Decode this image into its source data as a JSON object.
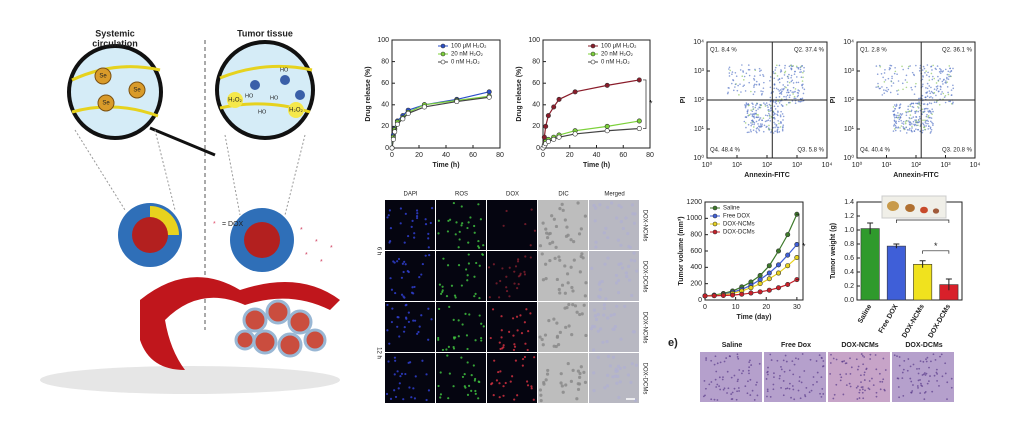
{
  "schematic": {
    "left_title": [
      "Systemic",
      "circulation"
    ],
    "right_title": "Tumor tissue",
    "legend": "= DOX",
    "se_labels": [
      "Se",
      "Se",
      "Se"
    ],
    "h2o2_labels": [
      "H₂O₂",
      "H₂O₂"
    ],
    "ho_labels": [
      "HO",
      "HO",
      "HO",
      "HO"
    ]
  },
  "chart_data": [
    {
      "type": "line",
      "x_label": "Time (h)",
      "y_label": "Drug release (%)",
      "x": [
        0,
        1,
        2,
        4,
        8,
        12,
        24,
        48,
        72
      ],
      "xlim": [
        0,
        80
      ],
      "ylim": [
        0,
        100
      ],
      "xticks": [
        0,
        20,
        40,
        60,
        80
      ],
      "yticks": [
        0,
        20,
        40,
        60,
        80,
        100
      ],
      "legend": "upper right",
      "series": [
        {
          "name": "100 μM H₂O₂",
          "color": "#2b4fc9",
          "values": [
            0,
            12,
            18,
            25,
            30,
            35,
            40,
            45,
            52
          ]
        },
        {
          "name": "20 nM H₂O₂",
          "color": "#7cd13a",
          "values": [
            0,
            10,
            17,
            24,
            28,
            33,
            40,
            44,
            48
          ]
        },
        {
          "name": "0 nM H₂O₂",
          "color": "#ffffff",
          "values": [
            0,
            8,
            15,
            22,
            27,
            32,
            38,
            43,
            47
          ]
        }
      ]
    },
    {
      "type": "line",
      "x_label": "Time (h)",
      "y_label": "Drug release (%)",
      "x": [
        0,
        1,
        2,
        4,
        8,
        12,
        24,
        48,
        72
      ],
      "xlim": [
        0,
        80
      ],
      "ylim": [
        0,
        100
      ],
      "xticks": [
        0,
        20,
        40,
        60,
        80
      ],
      "yticks": [
        0,
        20,
        40,
        60,
        80,
        100
      ],
      "legend": "upper right",
      "annotation": "*",
      "series": [
        {
          "name": "100 μM H₂O₂",
          "color": "#8a1c2a",
          "values": [
            0,
            10,
            20,
            30,
            38,
            45,
            52,
            58,
            63
          ]
        },
        {
          "name": "20 nM H₂O₂",
          "color": "#7cd13a",
          "values": [
            0,
            3,
            6,
            8,
            10,
            12,
            16,
            20,
            25
          ]
        },
        {
          "name": "0 nM H₂O₂",
          "color": "#ffffff",
          "values": [
            0,
            2,
            4,
            6,
            8,
            10,
            13,
            16,
            18
          ]
        }
      ]
    },
    {
      "type": "flow",
      "x_label": "Annexin-FITC",
      "y_label": "PI",
      "log_scale": true,
      "xlim": [
        1,
        10000
      ],
      "ylim": [
        1,
        10000
      ],
      "xticks": [
        {
          "value": 1,
          "label": "10⁰"
        },
        {
          "value": 10,
          "label": "10¹"
        },
        {
          "value": 100,
          "label": "10²"
        },
        {
          "value": 1000,
          "label": "10³"
        },
        {
          "value": 10000,
          "label": "10⁴"
        }
      ],
      "yticks": [
        {
          "value": 1,
          "label": "10⁰"
        },
        {
          "value": 10,
          "label": "10¹"
        },
        {
          "value": 100,
          "label": "10²"
        },
        {
          "value": 1000,
          "label": "10³"
        },
        {
          "value": 10000,
          "label": "10⁴"
        }
      ],
      "gates": {
        "x": 150,
        "y": 100
      },
      "quadrant_labels": [
        "Q1. 8.4 %",
        "Q2. 37.4 %",
        "Q4. 48.4 %",
        "Q3. 5.8 %"
      ]
    },
    {
      "type": "flow",
      "x_label": "Annexin-FITC",
      "y_label": "PI",
      "log_scale": true,
      "xlim": [
        1,
        10000
      ],
      "ylim": [
        1,
        10000
      ],
      "xticks": [
        {
          "value": 1,
          "label": "10⁰"
        },
        {
          "value": 10,
          "label": "10¹"
        },
        {
          "value": 100,
          "label": "10²"
        },
        {
          "value": 1000,
          "label": "10³"
        },
        {
          "value": 10000,
          "label": "10⁴"
        }
      ],
      "yticks": [
        {
          "value": 1,
          "label": "10⁰"
        },
        {
          "value": 10,
          "label": "10¹"
        },
        {
          "value": 100,
          "label": "10²"
        },
        {
          "value": 1000,
          "label": "10³"
        },
        {
          "value": 10000,
          "label": "10⁴"
        }
      ],
      "gates": {
        "x": 150,
        "y": 100
      },
      "quadrant_labels": [
        "Q1. 2.8 %",
        "Q2. 36.1 %",
        "Q4. 40.4 %",
        "Q3. 20.8 %"
      ]
    },
    {
      "type": "line",
      "x_label": "Time (day)",
      "y_label": "Tumor volume (mm³)",
      "x": [
        0,
        3,
        6,
        9,
        12,
        15,
        18,
        21,
        24,
        27,
        30
      ],
      "xlim": [
        0,
        32
      ],
      "ylim": [
        0,
        1200
      ],
      "xticks": [
        0,
        10,
        20,
        30
      ],
      "yticks": [
        0,
        200,
        400,
        600,
        800,
        1000,
        1200
      ],
      "legend": "upper left",
      "annotation": "*",
      "series": [
        {
          "name": "Saline",
          "color": "#3d7a2a",
          "values": [
            50,
            60,
            80,
            110,
            160,
            220,
            300,
            420,
            600,
            800,
            1050
          ]
        },
        {
          "name": "Free DOX",
          "color": "#3f5fd8",
          "values": [
            50,
            55,
            70,
            95,
            130,
            180,
            250,
            330,
            430,
            550,
            680
          ]
        },
        {
          "name": "DOX-NCMs",
          "color": "#e8d21e",
          "values": [
            50,
            55,
            65,
            80,
            110,
            150,
            200,
            260,
            330,
            420,
            520
          ]
        },
        {
          "name": "DOX-DCMs",
          "color": "#c8202a",
          "values": [
            50,
            52,
            55,
            60,
            70,
            85,
            100,
            120,
            150,
            190,
            250
          ]
        }
      ]
    },
    {
      "type": "bar",
      "y_label": "Tumor weight (g)",
      "categories": [
        "Saline",
        "Free DOX",
        "DOX-NCMs",
        "DOX-DCMs"
      ],
      "values": [
        1.02,
        0.77,
        0.51,
        0.22
      ],
      "errors": [
        0.08,
        0.03,
        0.05,
        0.08
      ],
      "colors": [
        "#2f9a2c",
        "#3f5fd8",
        "#f0e21e",
        "#d8202a"
      ],
      "ylim": [
        0,
        1.4
      ],
      "yticks": [
        {
          "value": 0,
          "label": "0.0"
        },
        0.2,
        0.4,
        0.6,
        0.8,
        {
          "value": 1,
          "label": "1.0"
        },
        1.2,
        1.4
      ],
      "annotations": [
        "*",
        "*"
      ]
    }
  ],
  "microscopy": {
    "columns": [
      "DAPI",
      "ROS",
      "DOX",
      "DIC",
      "Merged"
    ],
    "rows": [
      "DOX-NCMs",
      "DOX-DCMs",
      "DOX-NCMs",
      "DOX-DCMs"
    ],
    "times": [
      "6 h",
      "12 h"
    ]
  },
  "histology": {
    "panel": "e)",
    "labels": [
      "Saline",
      "Free Dox",
      "DOX-NCMs",
      "DOX-DCMs"
    ]
  }
}
